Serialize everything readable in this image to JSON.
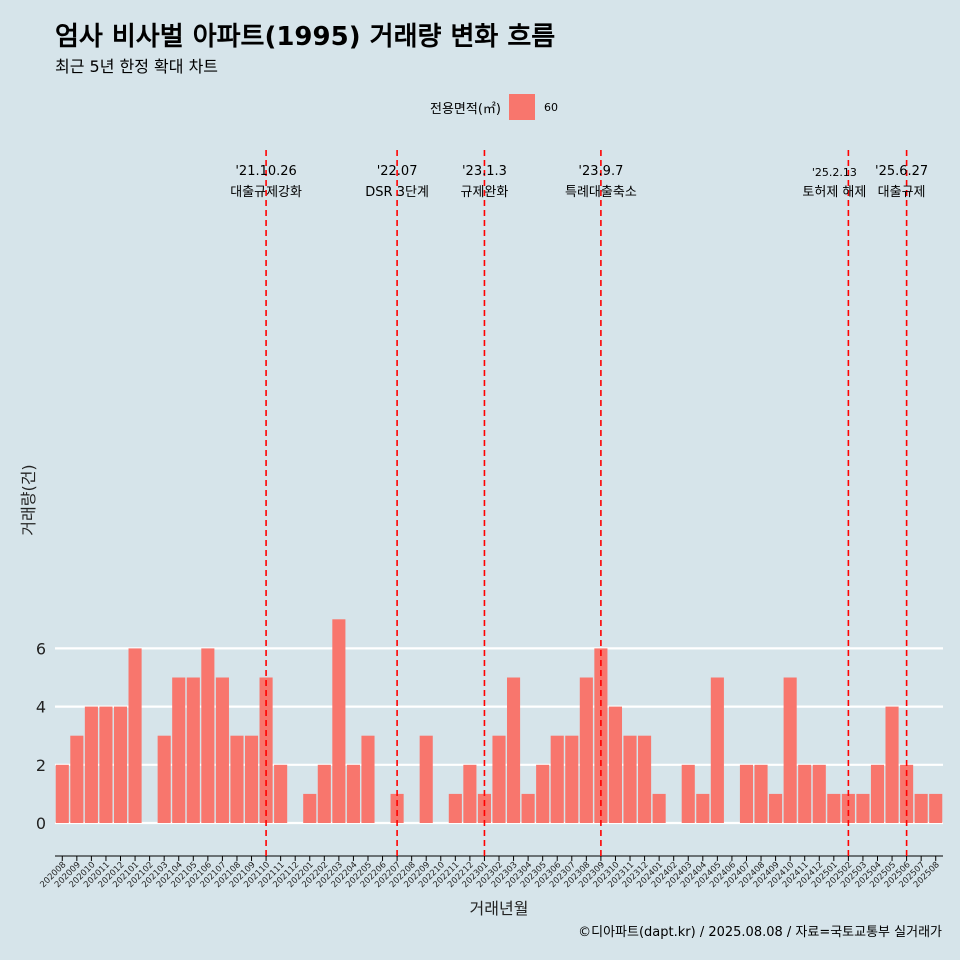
{
  "title": "엄사 비사벌 아파트(1995) 거래량 변화 흐름",
  "subtitle": "최근 5년 한정 확대 차트",
  "legend": {
    "title": "전용면적(㎡)",
    "label": "60"
  },
  "caption": "©디아파트(dapt.kr) / 2025.08.08 / 자료=국토교통부 실거래가",
  "colors": {
    "bar": "#f8766d",
    "background": "#d6e4ea",
    "grid": "#ffffff",
    "vline": "#ff0000"
  },
  "chart_data": {
    "type": "bar",
    "xlabel": "거래년월",
    "ylabel": "거래량(건)",
    "ylim": [
      0,
      7.3
    ],
    "yticks": [
      0,
      2,
      4,
      6
    ],
    "grid": true,
    "legend_position": "top",
    "categories": [
      "202008",
      "202009",
      "202010",
      "202011",
      "202012",
      "202101",
      "202102",
      "202103",
      "202104",
      "202105",
      "202106",
      "202107",
      "202108",
      "202109",
      "202110",
      "202111",
      "202112",
      "202201",
      "202202",
      "202203",
      "202204",
      "202205",
      "202206",
      "202207",
      "202208",
      "202209",
      "202210",
      "202211",
      "202212",
      "202301",
      "202302",
      "202303",
      "202304",
      "202305",
      "202306",
      "202307",
      "202308",
      "202309",
      "202310",
      "202311",
      "202312",
      "202401",
      "202402",
      "202403",
      "202404",
      "202405",
      "202406",
      "202407",
      "202408",
      "202409",
      "202410",
      "202411",
      "202412",
      "202501",
      "202502",
      "202503",
      "202504",
      "202505",
      "202506",
      "202507",
      "202508"
    ],
    "series": [
      {
        "name": "60",
        "values": [
          2,
          3,
          4,
          4,
          4,
          6,
          0,
          3,
          5,
          5,
          6,
          5,
          3,
          3,
          5,
          2,
          0,
          1,
          2,
          7,
          2,
          3,
          0,
          1,
          0,
          3,
          0,
          1,
          2,
          1,
          3,
          5,
          1,
          2,
          3,
          3,
          5,
          6,
          4,
          3,
          3,
          1,
          0,
          2,
          1,
          5,
          0,
          2,
          2,
          1,
          5,
          2,
          2,
          1,
          1,
          1,
          2,
          4,
          2,
          1,
          1
        ]
      }
    ],
    "annotations": [
      {
        "category": "202110",
        "date": "'21.10.26",
        "label": "대출규제강화"
      },
      {
        "category": "202207",
        "date": "'22.07",
        "label": "DSR 3단계"
      },
      {
        "category": "202301",
        "date": "'23.1.3",
        "label": "규제완화"
      },
      {
        "category": "202309",
        "date": "'23.9.7",
        "label": "특례대출축소"
      },
      {
        "category": "202502",
        "date": "'25.2.13",
        "label": "토허제 해제"
      },
      {
        "category": "202506",
        "date": "'25.6.27",
        "label": "대출규제"
      }
    ]
  }
}
